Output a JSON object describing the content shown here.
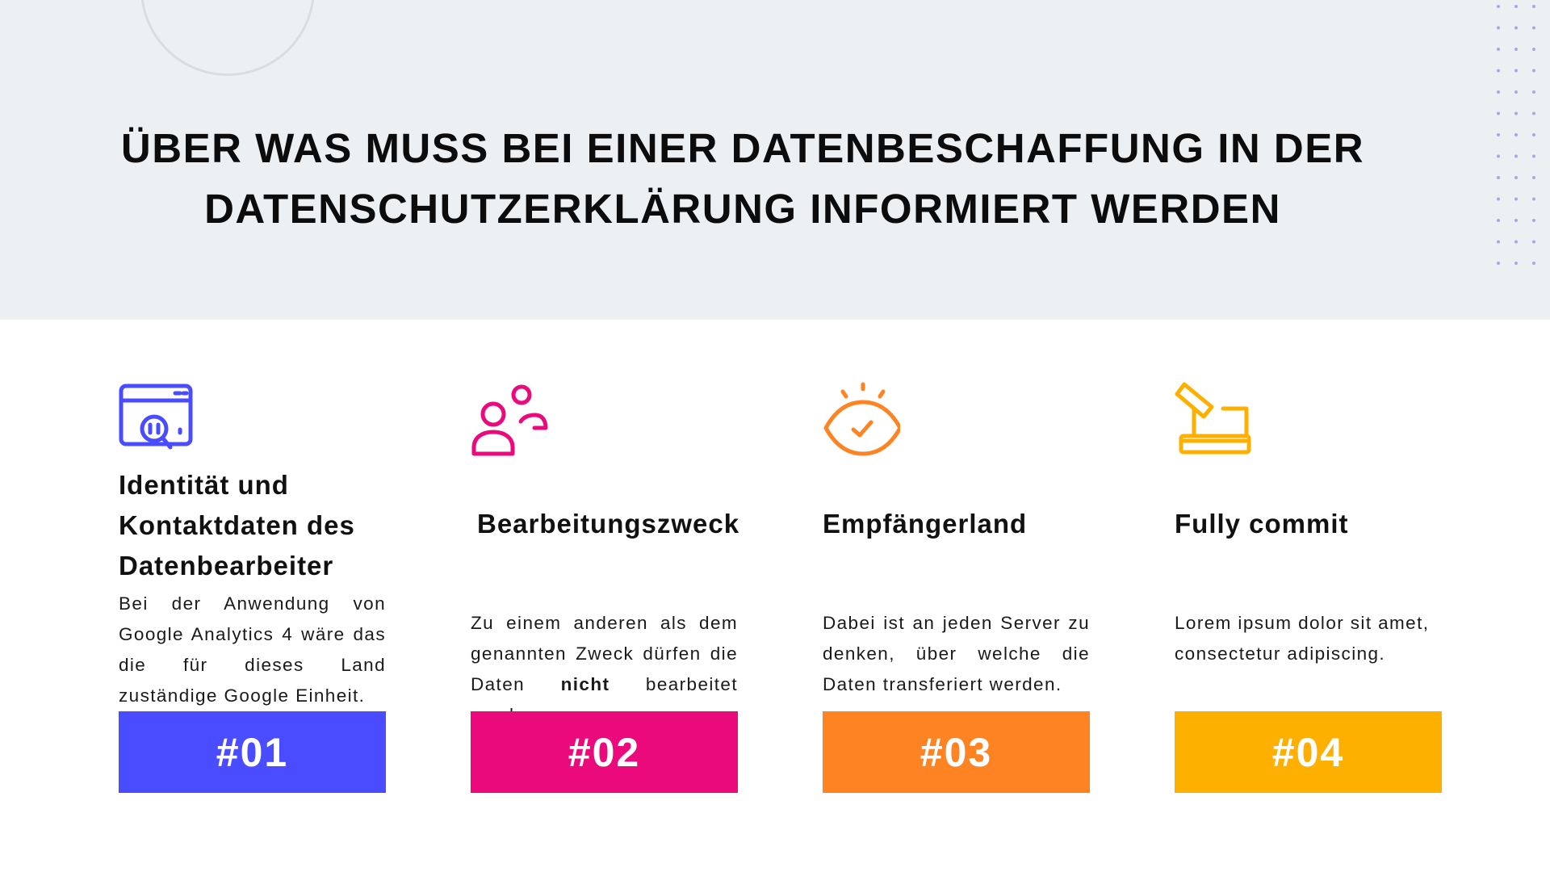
{
  "header": {
    "title_line1": "ÜBER WAS MUSS BEI EINER DATENBESCHAFFUNG IN DER",
    "title_line2": "DATENSCHUTZERKLÄRUNG INFORMIERT WERDEN"
  },
  "colors": {
    "header_bg": "#edf0f2",
    "card1": "#4a4dff",
    "card2": "#ea0a7c",
    "card3": "#fd8323",
    "card4": "#fdb000"
  },
  "cards": [
    {
      "icon": "browser-search-icon",
      "title": "Identität und Kontaktdaten des Datenbearbeiter",
      "text": "Bei der Anwendung von Google Analytics 4 wäre das die für dieses Land zuständige Google Einheit.",
      "badge": "#01"
    },
    {
      "icon": "users-icon",
      "title": "Bearbeitungszweck",
      "text_before": "Zu einem anderen als dem genannten Zweck dürfen die Daten ",
      "text_bold": "nicht",
      "text_after": " bearbeitet werden",
      "badge": "#02"
    },
    {
      "icon": "eye-check-icon",
      "title": "Empfängerland",
      "text": "Dabei ist an jeden Server zu denken, über welche die Daten transferiert werden.",
      "badge": "#03"
    },
    {
      "icon": "voting-box-icon",
      "title": "Fully commit",
      "text": "Lorem ipsum dolor sit amet, consectetur adipiscing.",
      "badge": "#04"
    }
  ]
}
